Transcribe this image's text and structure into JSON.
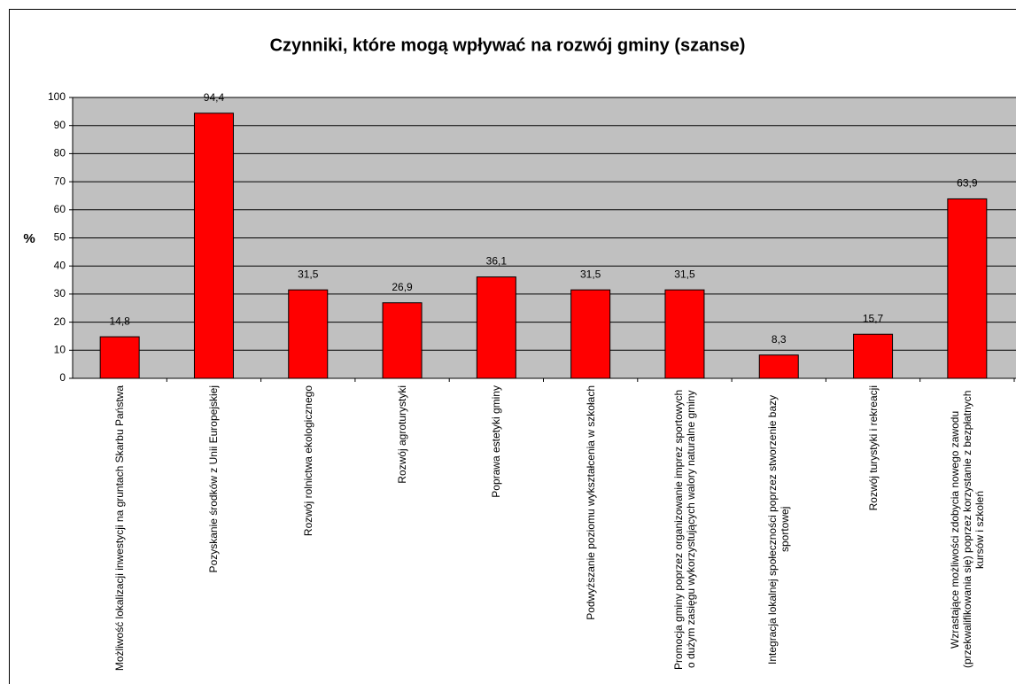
{
  "chart_data": {
    "type": "bar",
    "title": "Czynniki, które mogą wpływać na rozwój gminy (szanse)",
    "y_label": "%",
    "categories": [
      "Możliwość lokalizacji inwestycji na gruntach Skarbu Państwa",
      "Pozyskanie środków z Unii Europejskiej",
      "Rozwój rolnictwa ekologicznego",
      "Rozwój agroturystyki",
      "Poprawa estetyki gminy",
      "Podwyższanie poziomu wykształcenia w szkołach",
      "Promocja gminy poprzez organizowanie imprez sportowych o dużym zasięgu wykorzystujących walory naturalne gminy",
      "Integracja lokalnej społeczności poprzez stworzenie bazy sportowej",
      "Rozwój turystyki i rekreacji",
      "Wzrastające możliwości zdobycia nowego zawodu (przekwalifikowania się) poprzez korzystanie z bezpłatnych kursów i szkoleń"
    ],
    "values": [
      14.8,
      94.4,
      31.5,
      26.9,
      36.1,
      31.5,
      31.5,
      8.3,
      15.7,
      63.9
    ],
    "value_labels": [
      "14,8",
      "94,4",
      "31,5",
      "26,9",
      "36,1",
      "31,5",
      "31,5",
      "8,3",
      "15,7",
      "63,9"
    ],
    "color": "#ff0000",
    "ylim": [
      0,
      100
    ],
    "yticks": [
      0,
      10,
      20,
      30,
      40,
      50,
      60,
      70,
      80,
      90,
      100
    ],
    "grid": true
  }
}
